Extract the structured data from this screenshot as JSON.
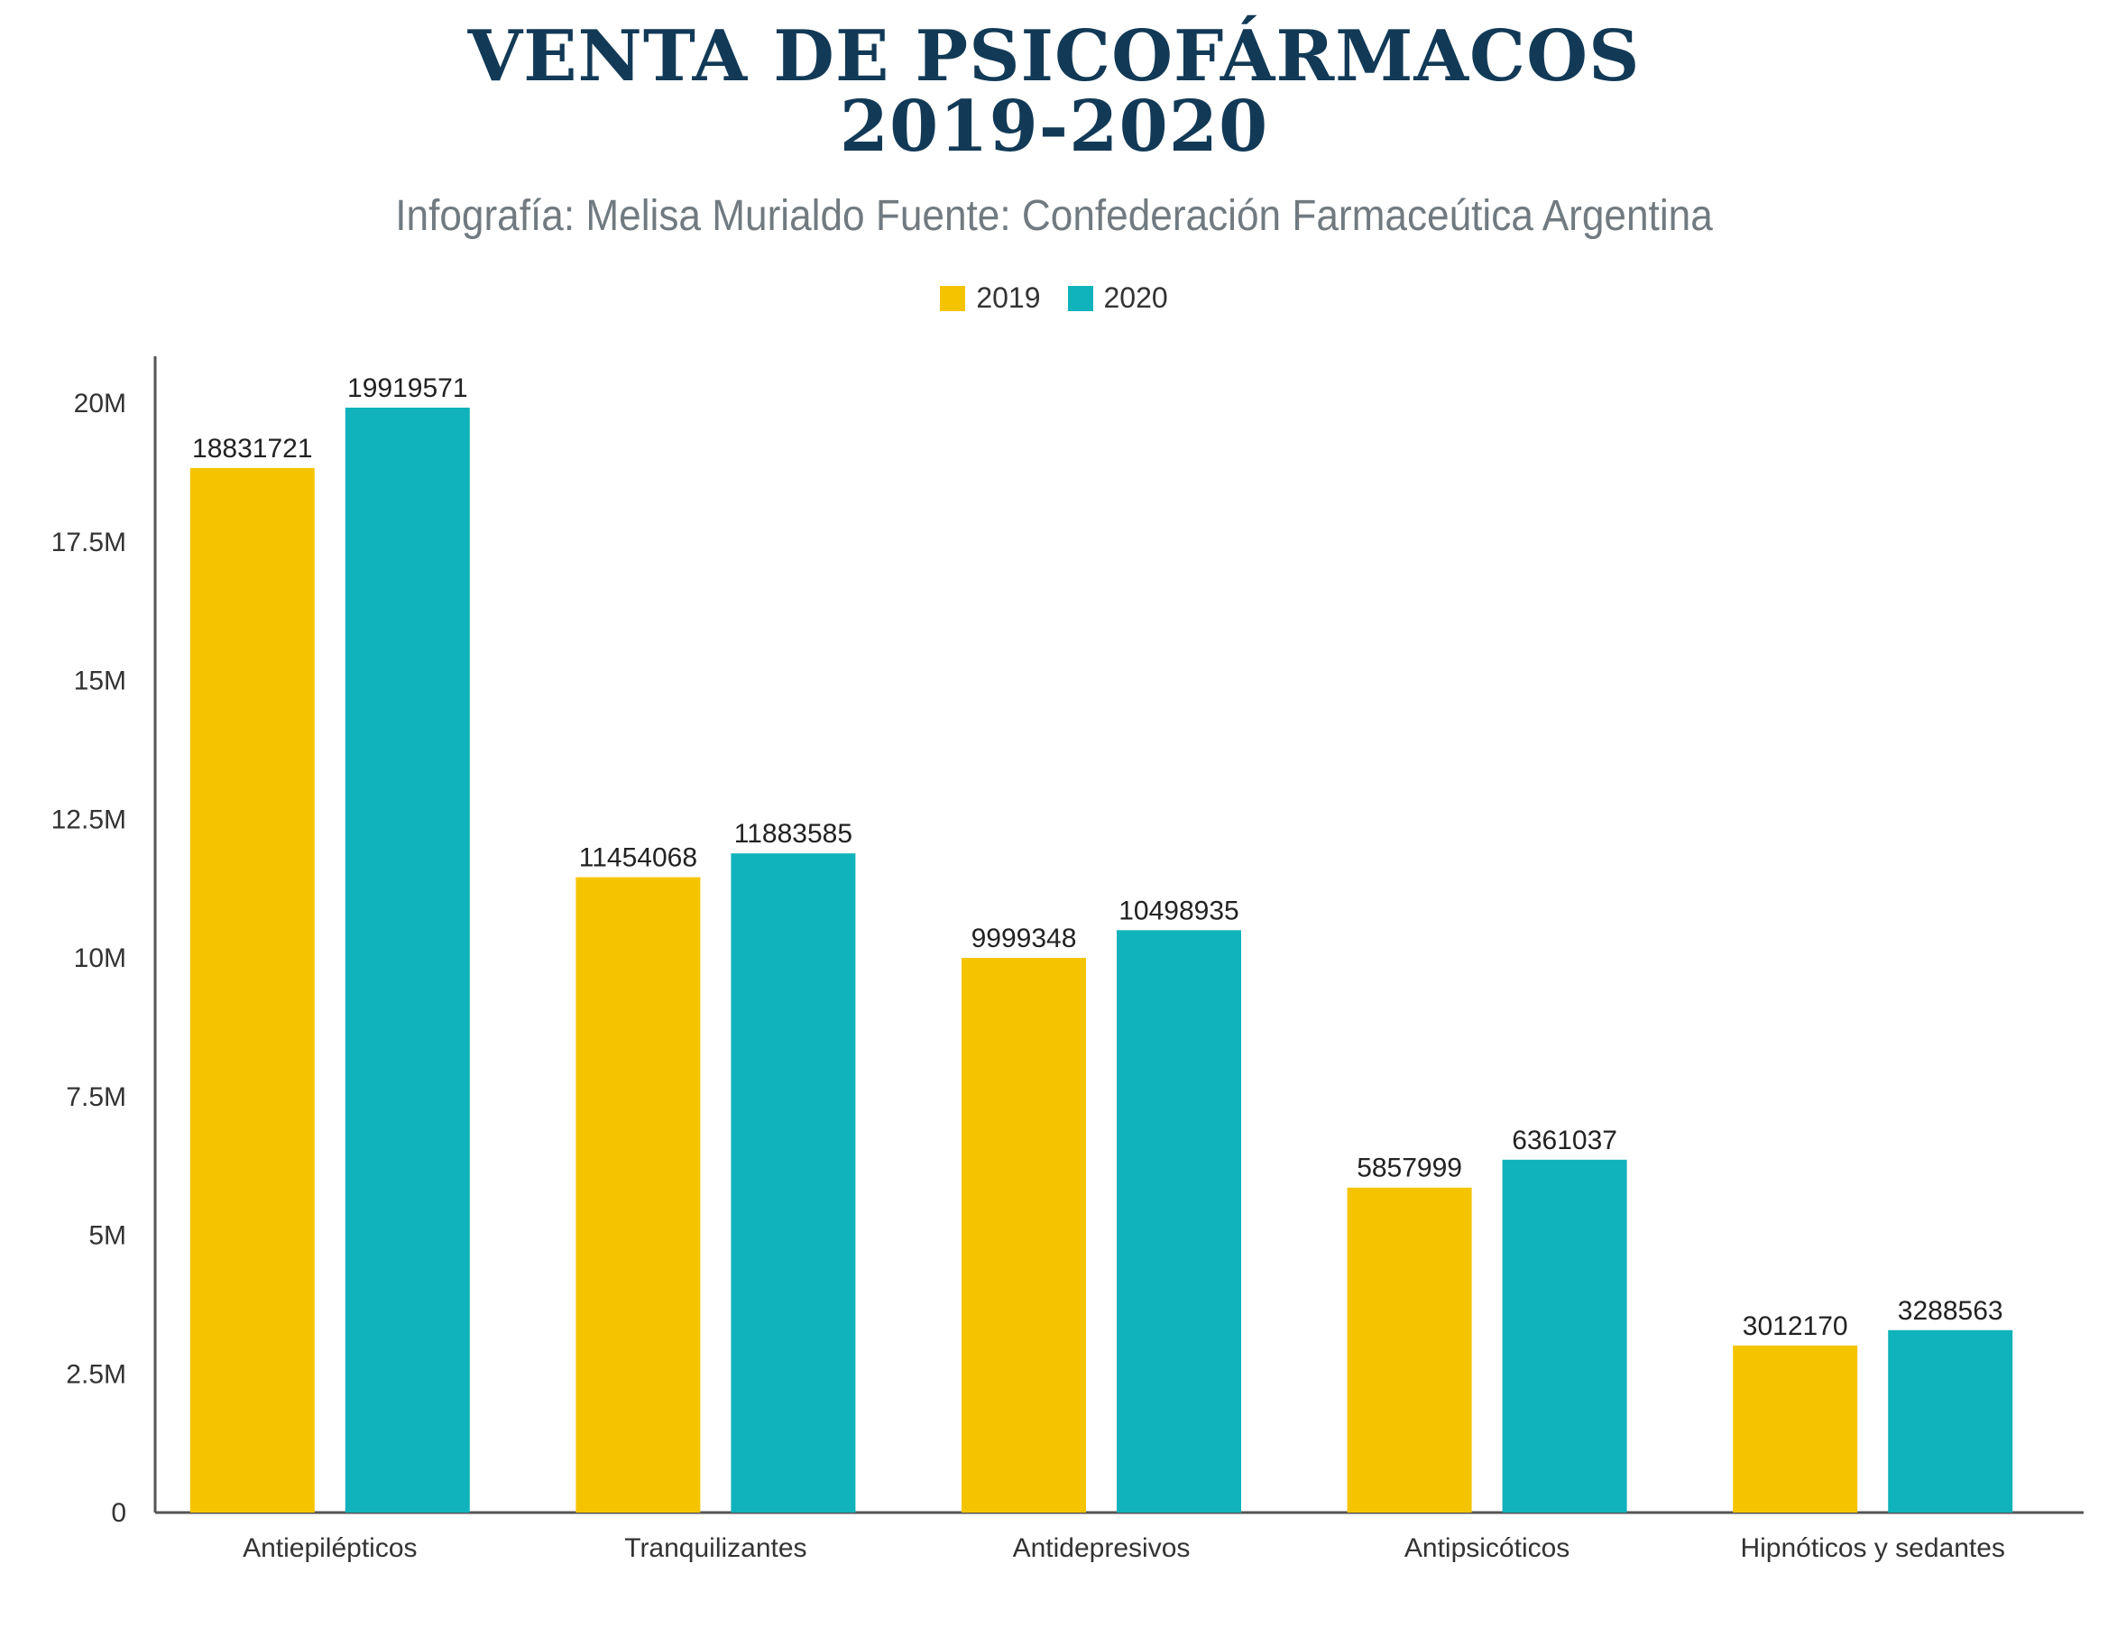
{
  "title_line1": "VENTA DE PSICOFÁRMACOS",
  "title_line2": "2019-2020",
  "subtitle": "Infografía: Melisa Murialdo Fuente: Confederación Farmaceútica Argentina",
  "colors": {
    "series_2019": "#f5c400",
    "series_2020": "#10b3bb",
    "title": "#123a57",
    "axis": "#555555"
  },
  "chart_data": {
    "type": "bar",
    "categories": [
      "Antiepilépticos",
      "Tranquilizantes",
      "Antidepresivos",
      "Antipsicóticos",
      "Hipnóticos y sedantes"
    ],
    "series": [
      {
        "name": "2019",
        "values": [
          18831721,
          11454068,
          9999348,
          5857999,
          3012170
        ]
      },
      {
        "name": "2020",
        "values": [
          19919571,
          11883585,
          10498935,
          6361037,
          3288563
        ]
      }
    ],
    "ylim": [
      0,
      20000000
    ],
    "yticks": [
      0,
      2500000,
      5000000,
      7500000,
      10000000,
      12500000,
      15000000,
      17500000,
      20000000
    ],
    "ytick_labels": [
      "0",
      "2.5M",
      "5M",
      "7.5M",
      "10M",
      "12.5M",
      "15M",
      "17.5M",
      "20M"
    ],
    "legend_position": "top-center",
    "grid": false
  }
}
